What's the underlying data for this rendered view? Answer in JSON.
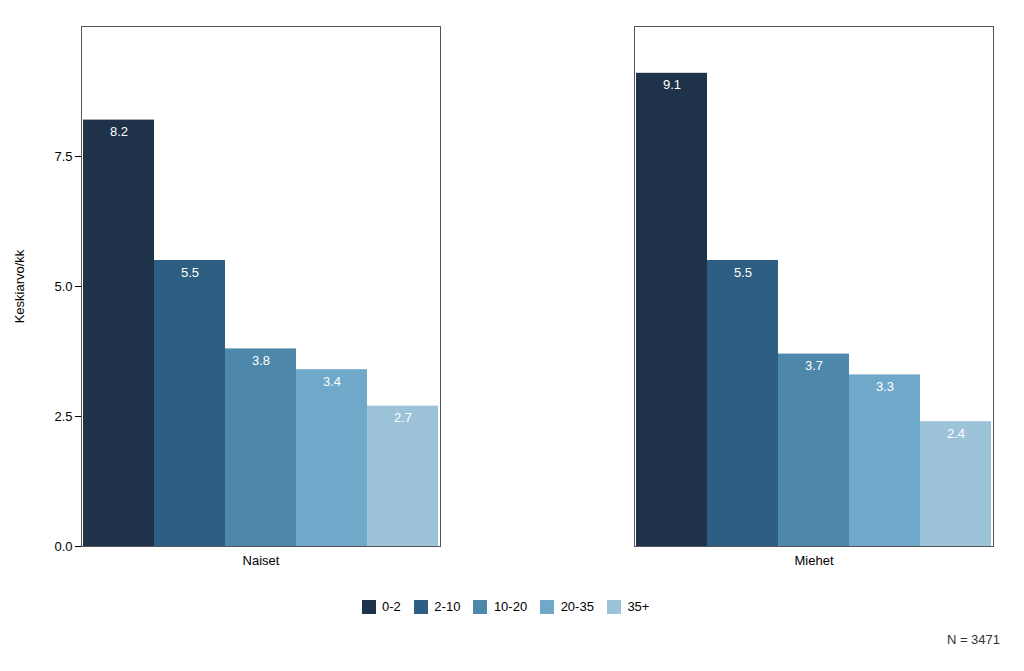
{
  "chart_data": {
    "type": "bar",
    "ylabel": "Keskiarvo/kk",
    "categories": [
      "Naiset",
      "Miehet"
    ],
    "series": [
      {
        "name": "0-2",
        "color": "#1e3349",
        "values": [
          8.2,
          9.1
        ]
      },
      {
        "name": "2-10",
        "color": "#2e5f82",
        "values": [
          5.5,
          5.5
        ]
      },
      {
        "name": "10-20",
        "color": "#4d87aa",
        "values": [
          3.8,
          3.7
        ]
      },
      {
        "name": "20-35",
        "color": "#6fa8c8",
        "values": [
          3.4,
          3.3
        ]
      },
      {
        "name": "35+",
        "color": "#9dc3d9",
        "values": [
          2.7,
          2.4
        ]
      }
    ],
    "ylim": [
      0,
      10
    ],
    "yticks": [
      {
        "value": 0,
        "label": "0.0"
      },
      2.5,
      {
        "value": 5,
        "label": "5.0"
      },
      7.5
    ],
    "data_labels": true,
    "legend": "bottom",
    "grid": false,
    "annotation": "N = 3471"
  }
}
